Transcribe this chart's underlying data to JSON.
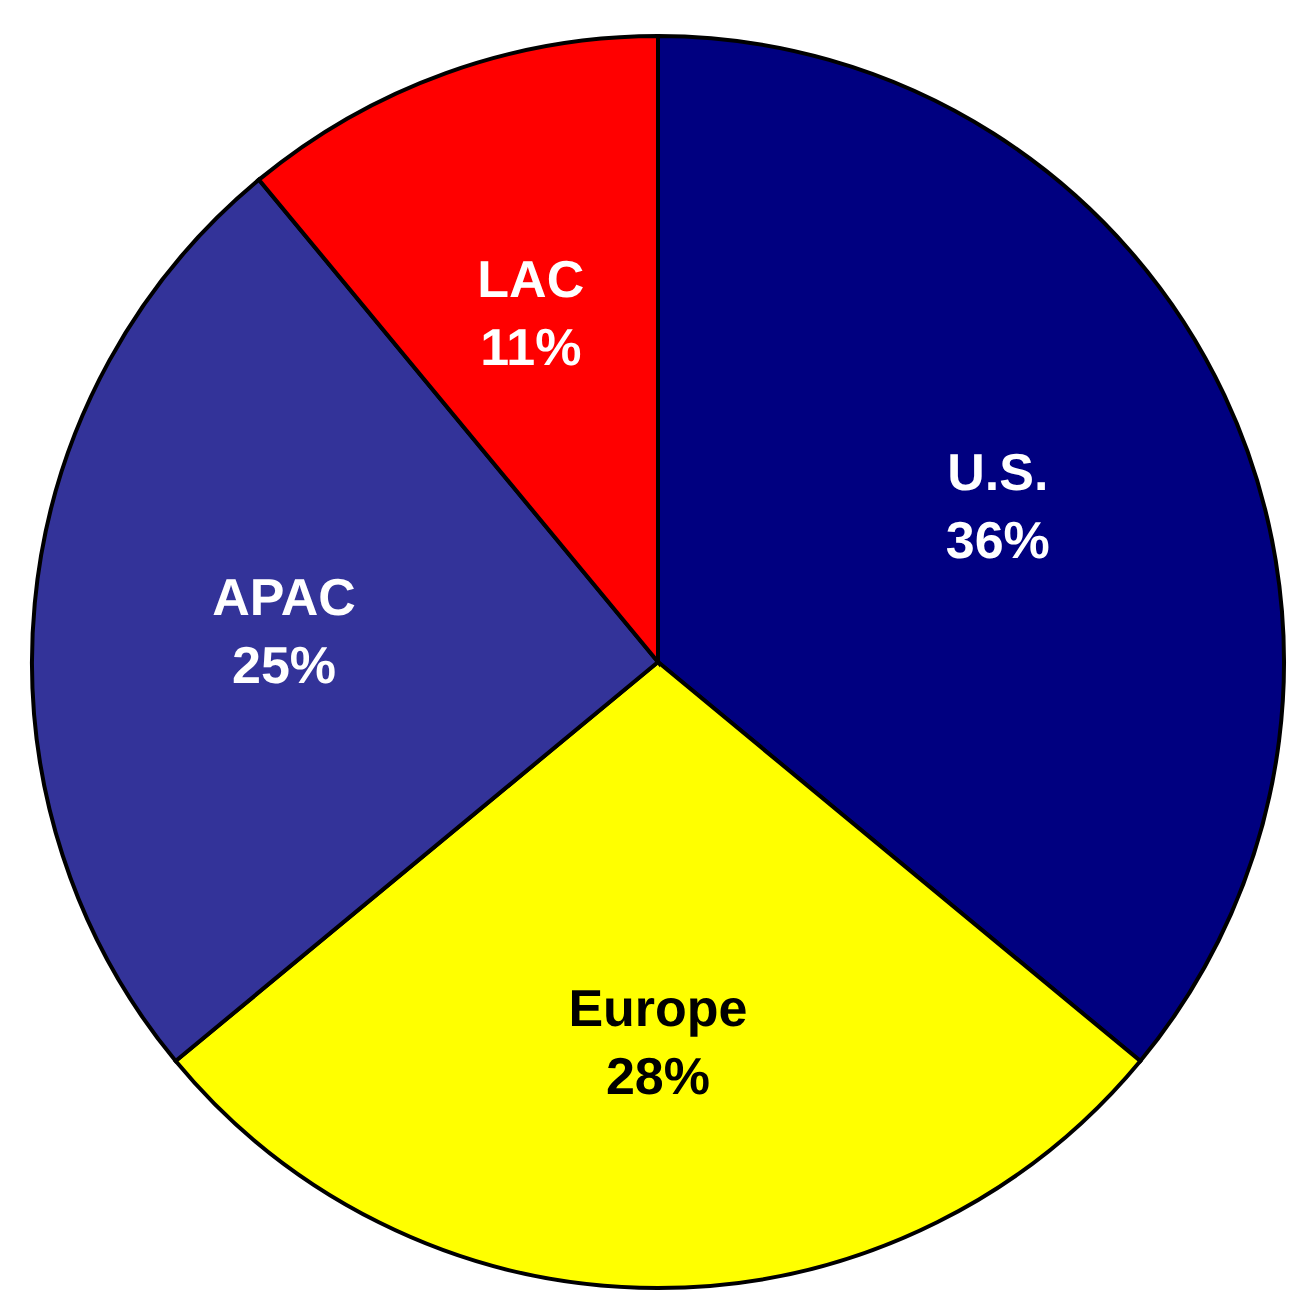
{
  "chart_data": {
    "type": "pie",
    "categories": [
      "U.S.",
      "Europe",
      "APAC",
      "LAC"
    ],
    "values": [
      36,
      28,
      25,
      11
    ],
    "colors": [
      "#000080",
      "#ffff00",
      "#333399",
      "#ff0000"
    ],
    "value_labels": [
      "36%",
      "28%",
      "25%",
      "11%"
    ],
    "legend": false
  }
}
